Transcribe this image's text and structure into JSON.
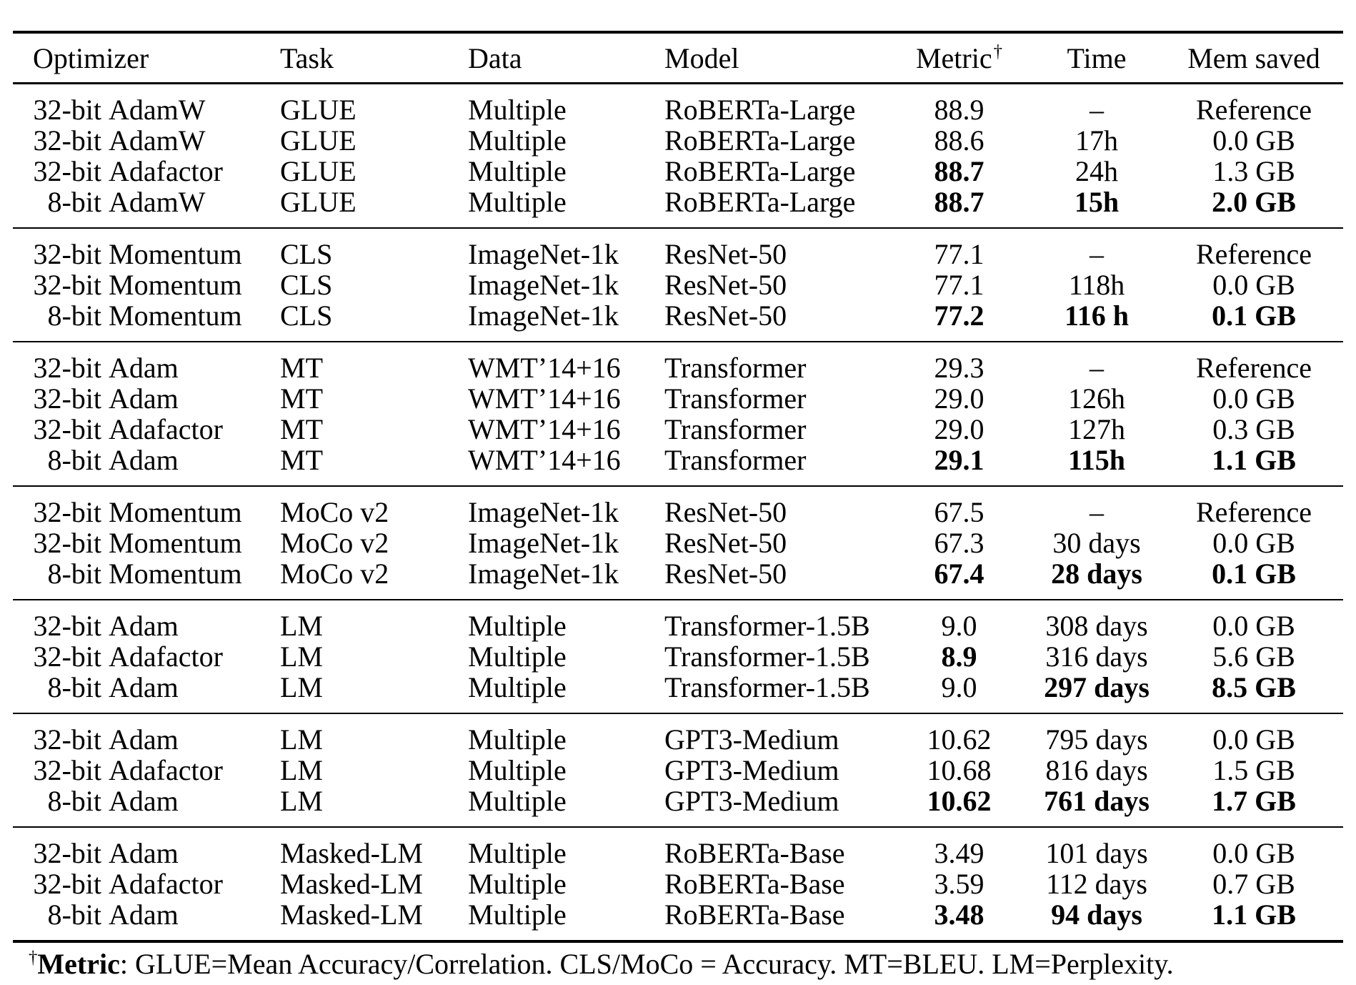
{
  "table": {
    "headers": [
      {
        "label": "Optimizer"
      },
      {
        "label": "Task"
      },
      {
        "label": "Data"
      },
      {
        "label": "Model"
      },
      {
        "label": "Metric",
        "sup": "†"
      },
      {
        "label": "Time"
      },
      {
        "label": "Mem saved"
      }
    ],
    "groups": [
      {
        "rows": [
          {
            "optimizer": {
              "bits": "32-bit",
              "name": "AdamW"
            },
            "task": "GLUE",
            "data": "Multiple",
            "model": "RoBERTa-Large",
            "metric": "88.9",
            "metric_bold": false,
            "time": "–",
            "time_bold": false,
            "mem": "Reference",
            "mem_bold": false
          },
          {
            "optimizer": {
              "bits": "32-bit",
              "name": "AdamW"
            },
            "task": "GLUE",
            "data": "Multiple",
            "model": "RoBERTa-Large",
            "metric": "88.6",
            "metric_bold": false,
            "time": "17h",
            "time_bold": false,
            "mem": "0.0 GB",
            "mem_bold": false
          },
          {
            "optimizer": {
              "bits": "32-bit",
              "name": "Adafactor"
            },
            "task": "GLUE",
            "data": "Multiple",
            "model": "RoBERTa-Large",
            "metric": "88.7",
            "metric_bold": true,
            "time": "24h",
            "time_bold": false,
            "mem": "1.3 GB",
            "mem_bold": false
          },
          {
            "optimizer": {
              "bits": "8-bit",
              "name": "AdamW"
            },
            "task": "GLUE",
            "data": "Multiple",
            "model": "RoBERTa-Large",
            "metric": "88.7",
            "metric_bold": true,
            "time": "15h",
            "time_bold": true,
            "mem": "2.0 GB",
            "mem_bold": true
          }
        ]
      },
      {
        "rows": [
          {
            "optimizer": {
              "bits": "32-bit",
              "name": "Momentum"
            },
            "task": "CLS",
            "data": "ImageNet-1k",
            "model": "ResNet-50",
            "metric": "77.1",
            "metric_bold": false,
            "time": "–",
            "time_bold": false,
            "mem": "Reference",
            "mem_bold": false
          },
          {
            "optimizer": {
              "bits": "32-bit",
              "name": "Momentum"
            },
            "task": "CLS",
            "data": "ImageNet-1k",
            "model": "ResNet-50",
            "metric": "77.1",
            "metric_bold": false,
            "time": "118h",
            "time_bold": false,
            "mem": "0.0 GB",
            "mem_bold": false
          },
          {
            "optimizer": {
              "bits": "8-bit",
              "name": "Momentum"
            },
            "task": "CLS",
            "data": "ImageNet-1k",
            "model": "ResNet-50",
            "metric": "77.2",
            "metric_bold": true,
            "time": "116 h",
            "time_bold": true,
            "mem": "0.1 GB",
            "mem_bold": true
          }
        ]
      },
      {
        "rows": [
          {
            "optimizer": {
              "bits": "32-bit",
              "name": "Adam"
            },
            "task": "MT",
            "data": "WMT’14+16",
            "model": "Transformer",
            "metric": "29.3",
            "metric_bold": false,
            "time": "–",
            "time_bold": false,
            "mem": "Reference",
            "mem_bold": false
          },
          {
            "optimizer": {
              "bits": "32-bit",
              "name": "Adam"
            },
            "task": "MT",
            "data": "WMT’14+16",
            "model": "Transformer",
            "metric": "29.0",
            "metric_bold": false,
            "time": "126h",
            "time_bold": false,
            "mem": "0.0 GB",
            "mem_bold": false
          },
          {
            "optimizer": {
              "bits": "32-bit",
              "name": "Adafactor"
            },
            "task": "MT",
            "data": "WMT’14+16",
            "model": "Transformer",
            "metric": "29.0",
            "metric_bold": false,
            "time": "127h",
            "time_bold": false,
            "mem": "0.3 GB",
            "mem_bold": false
          },
          {
            "optimizer": {
              "bits": "8-bit",
              "name": "Adam"
            },
            "task": "MT",
            "data": "WMT’14+16",
            "model": "Transformer",
            "metric": "29.1",
            "metric_bold": true,
            "time": "115h",
            "time_bold": true,
            "mem": "1.1 GB",
            "mem_bold": true
          }
        ]
      },
      {
        "rows": [
          {
            "optimizer": {
              "bits": "32-bit",
              "name": "Momentum"
            },
            "task": "MoCo v2",
            "data": "ImageNet-1k",
            "model": "ResNet-50",
            "metric": "67.5",
            "metric_bold": false,
            "time": "–",
            "time_bold": false,
            "mem": "Reference",
            "mem_bold": false
          },
          {
            "optimizer": {
              "bits": "32-bit",
              "name": "Momentum"
            },
            "task": "MoCo v2",
            "data": "ImageNet-1k",
            "model": "ResNet-50",
            "metric": "67.3",
            "metric_bold": false,
            "time": "30 days",
            "time_bold": false,
            "mem": "0.0 GB",
            "mem_bold": false
          },
          {
            "optimizer": {
              "bits": "8-bit",
              "name": "Momentum"
            },
            "task": "MoCo v2",
            "data": "ImageNet-1k",
            "model": "ResNet-50",
            "metric": "67.4",
            "metric_bold": true,
            "time": "28 days",
            "time_bold": true,
            "mem": "0.1 GB",
            "mem_bold": true
          }
        ]
      },
      {
        "rows": [
          {
            "optimizer": {
              "bits": "32-bit",
              "name": "Adam"
            },
            "task": "LM",
            "data": "Multiple",
            "model": "Transformer-1.5B",
            "metric": "9.0",
            "metric_bold": false,
            "time": "308 days",
            "time_bold": false,
            "mem": "0.0 GB",
            "mem_bold": false
          },
          {
            "optimizer": {
              "bits": "32-bit",
              "name": "Adafactor"
            },
            "task": "LM",
            "data": "Multiple",
            "model": "Transformer-1.5B",
            "metric": "8.9",
            "metric_bold": true,
            "time": "316 days",
            "time_bold": false,
            "mem": "5.6 GB",
            "mem_bold": false
          },
          {
            "optimizer": {
              "bits": "8-bit",
              "name": "Adam"
            },
            "task": "LM",
            "data": "Multiple",
            "model": "Transformer-1.5B",
            "metric": "9.0",
            "metric_bold": false,
            "time": "297 days",
            "time_bold": true,
            "mem": "8.5 GB",
            "mem_bold": true
          }
        ]
      },
      {
        "rows": [
          {
            "optimizer": {
              "bits": "32-bit",
              "name": "Adam"
            },
            "task": "LM",
            "data": "Multiple",
            "model": "GPT3-Medium",
            "metric": "10.62",
            "metric_bold": false,
            "time": "795 days",
            "time_bold": false,
            "mem": "0.0 GB",
            "mem_bold": false
          },
          {
            "optimizer": {
              "bits": "32-bit",
              "name": "Adafactor"
            },
            "task": "LM",
            "data": "Multiple",
            "model": "GPT3-Medium",
            "metric": "10.68",
            "metric_bold": false,
            "time": "816 days",
            "time_bold": false,
            "mem": "1.5 GB",
            "mem_bold": false
          },
          {
            "optimizer": {
              "bits": "8-bit",
              "name": "Adam"
            },
            "task": "LM",
            "data": "Multiple",
            "model": "GPT3-Medium",
            "metric": "10.62",
            "metric_bold": true,
            "time": "761 days",
            "time_bold": true,
            "mem": "1.7 GB",
            "mem_bold": true
          }
        ]
      },
      {
        "rows": [
          {
            "optimizer": {
              "bits": "32-bit",
              "name": "Adam"
            },
            "task": "Masked-LM",
            "data": "Multiple",
            "model": "RoBERTa-Base",
            "metric": "3.49",
            "metric_bold": false,
            "time": "101 days",
            "time_bold": false,
            "mem": "0.0 GB",
            "mem_bold": false
          },
          {
            "optimizer": {
              "bits": "32-bit",
              "name": "Adafactor"
            },
            "task": "Masked-LM",
            "data": "Multiple",
            "model": "RoBERTa-Base",
            "metric": "3.59",
            "metric_bold": false,
            "time": "112 days",
            "time_bold": false,
            "mem": "0.7 GB",
            "mem_bold": false
          },
          {
            "optimizer": {
              "bits": "8-bit",
              "name": "Adam"
            },
            "task": "Masked-LM",
            "data": "Multiple",
            "model": "RoBERTa-Base",
            "metric": "3.48",
            "metric_bold": true,
            "time": "94 days",
            "time_bold": true,
            "mem": "1.1 GB",
            "mem_bold": true
          }
        ]
      }
    ]
  },
  "footnote": {
    "dagger": "†",
    "label": "Metric",
    "text": ": GLUE=Mean Accuracy/Correlation. CLS/MoCo = Accuracy. MT=BLEU. LM=Perplexity."
  }
}
